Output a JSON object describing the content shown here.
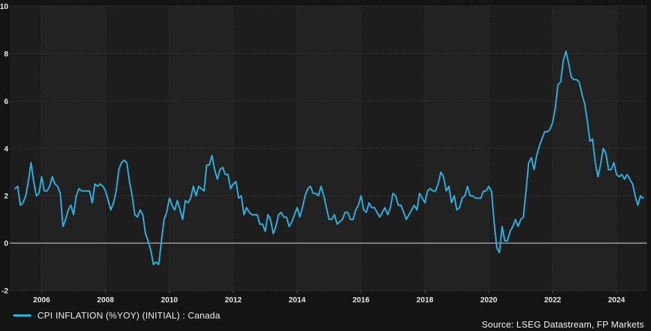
{
  "chart_data": {
    "type": "line",
    "title": "",
    "xlabel": "",
    "ylabel": "",
    "ylim": [
      -2,
      10
    ],
    "yticks": [
      -2,
      0,
      2,
      4,
      6,
      8,
      10
    ],
    "xticks": [
      2006,
      2008,
      2010,
      2012,
      2014,
      2016,
      2018,
      2020,
      2022,
      2024
    ],
    "x_range": [
      2005.0,
      2024.95
    ],
    "grid": "dotted",
    "zero_line": true,
    "legend_position": "bottom-left",
    "series": [
      {
        "name": "CPI INFLATION (%YOY) (INITIAL) : Canada",
        "color": "#29b6e6",
        "frequency": "monthly",
        "start_year_fraction": 2005.167,
        "values": [
          2.3,
          2.4,
          1.6,
          1.7,
          2.0,
          2.6,
          3.4,
          2.6,
          2.0,
          2.1,
          2.8,
          2.2,
          2.2,
          2.4,
          2.8,
          2.5,
          2.4,
          2.1,
          0.7,
          1.0,
          1.4,
          1.6,
          1.2,
          2.0,
          2.3,
          2.2,
          2.2,
          2.2,
          2.2,
          1.7,
          2.5,
          2.4,
          2.5,
          2.4,
          2.2,
          1.8,
          1.4,
          1.7,
          2.2,
          3.1,
          3.4,
          3.5,
          3.4,
          2.6,
          2.0,
          1.2,
          1.1,
          1.4,
          1.2,
          0.4,
          0.1,
          -0.3,
          -0.9,
          -0.8,
          -0.9,
          0.1,
          1.0,
          1.3,
          1.9,
          1.6,
          1.4,
          1.8,
          1.4,
          1.0,
          1.8,
          1.7,
          1.9,
          2.4,
          2.0,
          2.4,
          2.3,
          2.2,
          3.3,
          3.3,
          3.7,
          3.1,
          2.7,
          3.1,
          3.2,
          2.9,
          2.9,
          2.3,
          2.5,
          2.6,
          1.9,
          2.0,
          1.2,
          1.5,
          1.3,
          1.2,
          1.2,
          1.2,
          0.8,
          0.8,
          0.5,
          1.2,
          1.0,
          0.4,
          0.7,
          1.2,
          1.3,
          1.1,
          1.1,
          0.7,
          0.9,
          1.2,
          1.5,
          1.1,
          1.5,
          2.0,
          2.3,
          2.4,
          2.1,
          2.1,
          2.0,
          2.4,
          2.0,
          1.5,
          1.0,
          1.0,
          1.2,
          0.8,
          0.9,
          1.0,
          1.3,
          1.3,
          1.0,
          1.0,
          1.4,
          1.6,
          2.0,
          1.4,
          1.3,
          1.7,
          1.5,
          1.5,
          1.3,
          1.1,
          1.3,
          1.5,
          1.2,
          1.5,
          2.1,
          2.0,
          1.6,
          1.6,
          1.3,
          1.0,
          1.2,
          1.4,
          1.6,
          1.4,
          2.1,
          1.9,
          1.7,
          2.2,
          2.3,
          2.2,
          2.2,
          2.5,
          3.0,
          2.8,
          2.2,
          2.4,
          1.7,
          2.0,
          1.4,
          1.5,
          1.9,
          2.0,
          2.4,
          2.0,
          2.0,
          1.9,
          1.9,
          1.9,
          2.2,
          2.2,
          2.4,
          2.2,
          0.9,
          -0.2,
          -0.4,
          0.7,
          0.1,
          0.1,
          0.5,
          0.7,
          1.0,
          0.7,
          1.0,
          1.1,
          2.2,
          3.4,
          3.6,
          3.1,
          3.7,
          4.1,
          4.4,
          4.7,
          4.7,
          4.8,
          5.1,
          5.7,
          6.7,
          6.8,
          7.7,
          8.1,
          7.6,
          7.0,
          6.9,
          6.9,
          6.8,
          6.3,
          5.9,
          5.2,
          4.3,
          4.4,
          3.4,
          2.8,
          3.3,
          4.0,
          3.8,
          3.1,
          3.1,
          3.4,
          2.9,
          2.8,
          2.9,
          2.7,
          2.9,
          2.7,
          2.5,
          2.0,
          1.6,
          2.0,
          1.9
        ]
      }
    ]
  },
  "legend": {
    "label": "CPI INFLATION (%YOY) (INITIAL) : Canada",
    "swatch_color": "#29b6e6"
  },
  "footer": {
    "source": "Source: LSEG Datastream, FP Markets"
  },
  "colors": {
    "background": "#141414",
    "plot_band_dark": "#1d1d1d",
    "plot_band_light": "#212121",
    "gridline": "#565656",
    "zero_line": "#a2a2a2",
    "tick_label": "#e8e8e8",
    "line": "#29b6e6"
  }
}
